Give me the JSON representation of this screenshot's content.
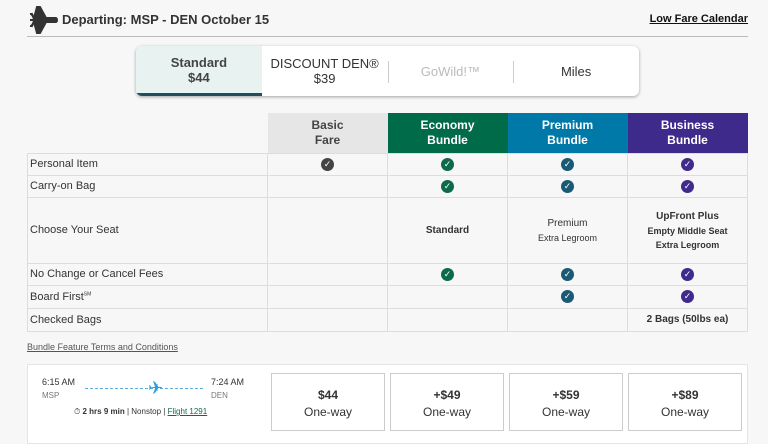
{
  "header": {
    "title": "Departing: MSP - DEN October 15",
    "low_fare_calendar": "Low Fare Calendar",
    "icon": "airplane-icon"
  },
  "fare_tabs": [
    {
      "label": "Standard",
      "price": "$44",
      "selected": true
    },
    {
      "label": "DISCOUNT DEN®",
      "price": "$39"
    },
    {
      "label": "GoWild!™",
      "disabled": true
    },
    {
      "label": "Miles"
    }
  ],
  "columns": [
    {
      "l1": "Basic",
      "l2": "Fare",
      "color": "#e6e6e6"
    },
    {
      "l1": "Economy",
      "l2": "Bundle",
      "color": "#006b48"
    },
    {
      "l1": "Premium",
      "l2": "Bundle",
      "color": "#0079a8"
    },
    {
      "l1": "Business",
      "l2": "Bundle",
      "color": "#3d2a8a"
    }
  ],
  "check_colors": [
    "#444444",
    "#0d6b4a",
    "#1a5a75",
    "#3f2b8c"
  ],
  "rows": {
    "personal_item": {
      "label": "Personal Item"
    },
    "carry_on": {
      "label": "Carry-on Bag"
    },
    "seat": {
      "label": "Choose Your Seat",
      "economy": "Standard",
      "premium": "Premium",
      "premium_sub": "Extra Legroom",
      "business": "UpFront Plus",
      "business_sub1": "Empty Middle Seat",
      "business_sub2": "Extra Legroom"
    },
    "no_fees": {
      "label": "No Change or Cancel Fees"
    },
    "board_first": {
      "label": "Board First",
      "sup": "SM"
    },
    "checked_bags": {
      "label": "Checked Bags",
      "business": "2 Bags (50lbs ea)"
    }
  },
  "terms": "Bundle Feature Terms and Conditions",
  "flight": {
    "depart_time": "6:15 AM",
    "depart_code": "MSP",
    "arrive_time": "7:24 AM",
    "arrive_code": "DEN",
    "duration": "2 hrs 9 min",
    "nonstop": "| Nonstop |",
    "flight_link": "Flight 1291",
    "prices": [
      {
        "price": "$44",
        "type": "One-way"
      },
      {
        "price": "+$49",
        "type": "One-way"
      },
      {
        "price": "+$59",
        "type": "One-way"
      },
      {
        "price": "+$89",
        "type": "One-way"
      }
    ]
  }
}
